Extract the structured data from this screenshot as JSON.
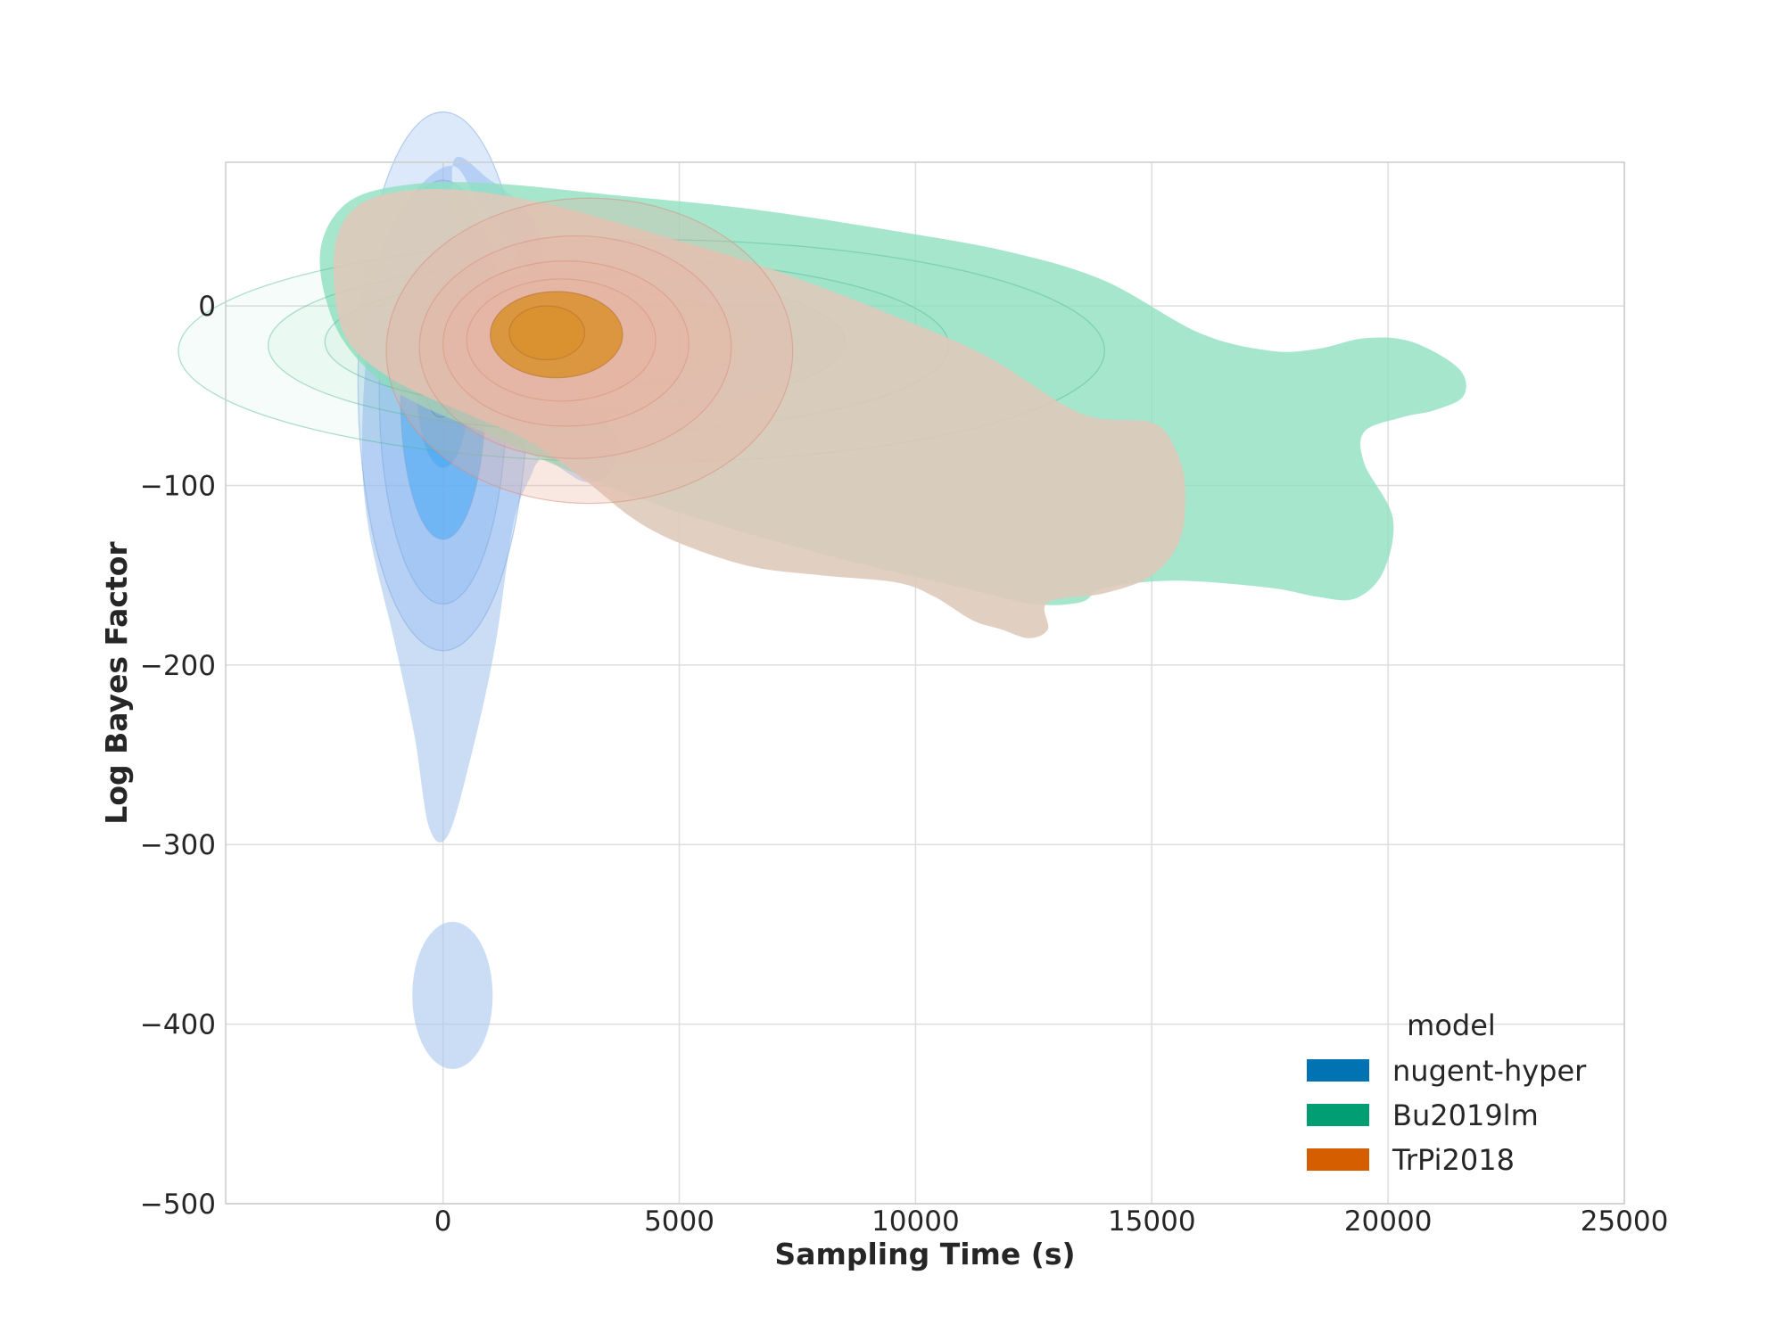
{
  "chart_data": {
    "type": "kde-contour",
    "xlabel": "Sampling Time (s)",
    "ylabel": "Log Bayes Factor",
    "xlim": [
      -4600,
      25000
    ],
    "ylim": [
      -500,
      80
    ],
    "xticks": [
      0,
      5000,
      10000,
      15000,
      20000,
      25000
    ],
    "yticks": [
      0,
      -100,
      -200,
      -300,
      -400,
      -500
    ],
    "grid": true,
    "legend": {
      "title": "model",
      "placement": "lower-right",
      "entries": [
        {
          "label": "nugent-hyper",
          "color": "#0173b2"
        },
        {
          "label": "Bu2019lm",
          "color": "#029e73"
        },
        {
          "label": "TrPi2018",
          "color": "#d55e00"
        }
      ]
    },
    "series": [
      {
        "name": "nugent-hyper",
        "fill": "#a8c6ee",
        "contour_fill": "#7fb0f0",
        "core_fill": "#3ea6f5",
        "outer_contour": [
          [
            200,
            78
          ],
          [
            1000,
            70
          ],
          [
            1800,
            52
          ],
          [
            2100,
            30
          ],
          [
            1900,
            -5
          ],
          [
            1100,
            -45
          ],
          [
            600,
            -90
          ],
          [
            350,
            -140
          ],
          [
            700,
            -100
          ],
          [
            1700,
            -80
          ],
          [
            3000,
            -98
          ],
          [
            3600,
            -90
          ],
          [
            3700,
            -75
          ],
          [
            3000,
            -50
          ],
          [
            2400,
            -20
          ],
          [
            1800,
            20
          ],
          [
            800,
            55
          ],
          [
            200,
            78
          ],
          [
            -700,
            60
          ],
          [
            -1400,
            20
          ],
          [
            -1700,
            -60
          ],
          [
            -1600,
            -120
          ],
          [
            -1000,
            -190
          ],
          [
            -600,
            -240
          ],
          [
            -300,
            -290
          ],
          [
            100,
            -295
          ],
          [
            600,
            -250
          ],
          [
            1100,
            -190
          ],
          [
            1500,
            -120
          ],
          [
            1900,
            -92
          ],
          [
            2000,
            -80
          ],
          [
            1200,
            -50
          ],
          [
            600,
            -10
          ],
          [
            200,
            78
          ]
        ],
        "island_contour": {
          "center": [
            200,
            -384
          ],
          "radius_x": 850,
          "radius_y": 41
        },
        "density_peak": [
          0,
          -40
        ],
        "inner_levels": [
          {
            "center": [
              0,
              -42
            ],
            "radius_x": 1800,
            "radius_y": 150
          },
          {
            "center": [
              0,
              -48
            ],
            "radius_x": 1350,
            "radius_y": 118
          },
          {
            "center": [
              0,
              -50
            ],
            "radius_x": 900,
            "radius_y": 80
          },
          {
            "center": [
              0,
              -45
            ],
            "radius_x": 550,
            "radius_y": 45
          },
          {
            "center": [
              -50,
              -40
            ],
            "radius_x": 350,
            "radius_y": 22
          }
        ]
      },
      {
        "name": "Bu2019lm",
        "fill": "#8fe0c0",
        "outer_contour": [
          [
            -2600,
            30
          ],
          [
            -2000,
            58
          ],
          [
            -600,
            68
          ],
          [
            1200,
            68
          ],
          [
            3500,
            62
          ],
          [
            6500,
            54
          ],
          [
            9500,
            42
          ],
          [
            12000,
            30
          ],
          [
            14000,
            14
          ],
          [
            16000,
            -15
          ],
          [
            17500,
            -25
          ],
          [
            18500,
            -24
          ],
          [
            19500,
            -18
          ],
          [
            20500,
            -20
          ],
          [
            21500,
            -35
          ],
          [
            21600,
            -50
          ],
          [
            21000,
            -58
          ],
          [
            20300,
            -62
          ],
          [
            19500,
            -70
          ],
          [
            19500,
            -88
          ],
          [
            20100,
            -118
          ],
          [
            19900,
            -148
          ],
          [
            19300,
            -163
          ],
          [
            18500,
            -162
          ],
          [
            17500,
            -157
          ],
          [
            15500,
            -153
          ],
          [
            14000,
            -157
          ],
          [
            13500,
            -165
          ],
          [
            12500,
            -166
          ],
          [
            11000,
            -157
          ],
          [
            8000,
            -138
          ],
          [
            5000,
            -115
          ],
          [
            2500,
            -90
          ],
          [
            1000,
            -72
          ],
          [
            -500,
            -55
          ],
          [
            -1500,
            -38
          ],
          [
            -2300,
            -10
          ],
          [
            -2600,
            30
          ]
        ],
        "density_peak": [
          2500,
          -20
        ],
        "inner_levels": [
          {
            "center": [
              4200,
              -25
            ],
            "radius_x": 9800,
            "radius_y": 62
          },
          {
            "center": [
              3500,
              -22
            ],
            "radius_x": 7200,
            "radius_y": 48
          },
          {
            "center": [
              3000,
              -20
            ],
            "radius_x": 5500,
            "radius_y": 38
          },
          {
            "center": [
              2700,
              -18
            ],
            "radius_x": 3800,
            "radius_y": 28
          }
        ]
      },
      {
        "name": "TrPi2018",
        "fill": "#f2c3b7",
        "mid_fill": "#ecb0a0",
        "core_fill": "#d9902e",
        "outer_contour": [
          [
            -2200,
            42
          ],
          [
            -1500,
            60
          ],
          [
            0,
            65
          ],
          [
            2000,
            58
          ],
          [
            4500,
            40
          ],
          [
            7000,
            20
          ],
          [
            9500,
            -5
          ],
          [
            11500,
            -28
          ],
          [
            13500,
            -60
          ],
          [
            15000,
            -65
          ],
          [
            15500,
            -80
          ],
          [
            15700,
            -100
          ],
          [
            15600,
            -130
          ],
          [
            15000,
            -150
          ],
          [
            14000,
            -160
          ],
          [
            12800,
            -165
          ],
          [
            12800,
            -180
          ],
          [
            12400,
            -185
          ],
          [
            11800,
            -180
          ],
          [
            11200,
            -175
          ],
          [
            10400,
            -162
          ],
          [
            9600,
            -154
          ],
          [
            8000,
            -150
          ],
          [
            6500,
            -145
          ],
          [
            5000,
            -132
          ],
          [
            4000,
            -118
          ],
          [
            3000,
            -97
          ],
          [
            1800,
            -75
          ],
          [
            500,
            -60
          ],
          [
            -1000,
            -42
          ],
          [
            -2000,
            -20
          ],
          [
            -2300,
            10
          ],
          [
            -2200,
            42
          ]
        ],
        "density_peak": [
          2500,
          -17
        ],
        "inner_levels": [
          {
            "center": [
              3100,
              -25
            ],
            "radius_x": 4300,
            "radius_y": 85
          },
          {
            "center": [
              2800,
              -23
            ],
            "radius_x": 3300,
            "radius_y": 62
          },
          {
            "center": [
              2600,
              -21
            ],
            "radius_x": 2600,
            "radius_y": 46
          },
          {
            "center": [
              2500,
              -19
            ],
            "radius_x": 2000,
            "radius_y": 34
          },
          {
            "center": [
              2400,
              -16
            ],
            "radius_x": 1400,
            "radius_y": 24
          },
          {
            "center": [
              2200,
              -15
            ],
            "radius_x": 800,
            "radius_y": 15
          }
        ]
      }
    ]
  }
}
